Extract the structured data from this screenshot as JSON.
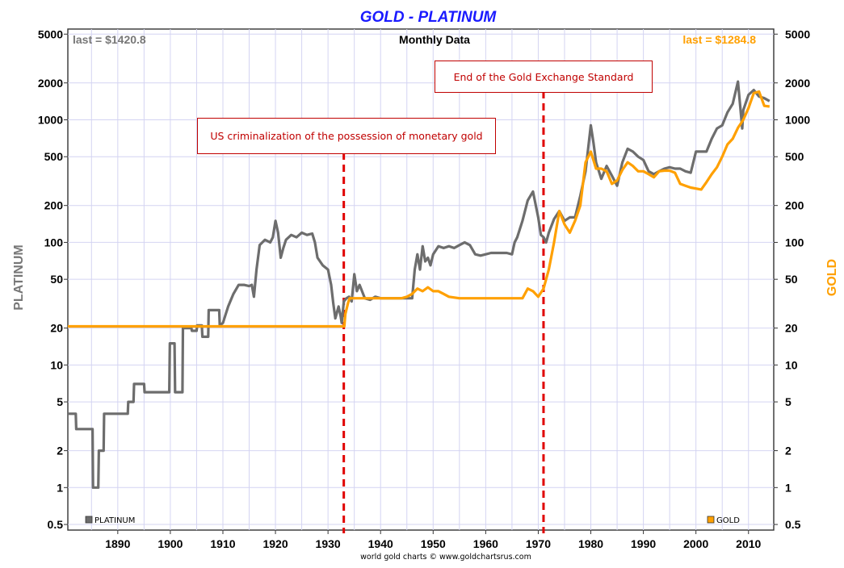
{
  "chart_data": {
    "type": "line",
    "title": "GOLD - PLATINUM",
    "subtitle": "Monthly Data",
    "credit": "world gold charts © www.goldchartsrus.com",
    "y_scale": "log",
    "ylim": [
      0.45,
      5500
    ],
    "xlim": [
      1880.5,
      2014.8
    ],
    "left_axis_label": "PLATINUM",
    "right_axis_label": "GOLD",
    "y_ticks": [
      0.5,
      1,
      2,
      5,
      10,
      20,
      50,
      100,
      200,
      500,
      1000,
      2000,
      5000
    ],
    "x_ticks": [
      1890,
      1900,
      1910,
      1920,
      1930,
      1940,
      1950,
      1960,
      1970,
      1980,
      1990,
      2000,
      2010
    ],
    "grid": true,
    "last_labels": {
      "platinum": "last = $1420.8",
      "gold": "last = $1284.8"
    },
    "legend": [
      {
        "name": "PLATINUM",
        "color": "#6d6d6d",
        "position": "bottom-left"
      },
      {
        "name": "GOLD",
        "color": "#ffa000",
        "position": "bottom-right"
      }
    ],
    "annotations": [
      {
        "text": "US criminalization of the possession of monetary gold",
        "x": 1933
      },
      {
        "text": "End of the Gold Exchange Standard",
        "x": 1971
      }
    ],
    "series": [
      {
        "name": "PLATINUM",
        "color": "#6d6d6d",
        "points": [
          [
            1880.5,
            4
          ],
          [
            1882,
            4
          ],
          [
            1882.1,
            3
          ],
          [
            1885.2,
            3
          ],
          [
            1885.3,
            1
          ],
          [
            1886.3,
            1
          ],
          [
            1886.4,
            2
          ],
          [
            1887.3,
            2
          ],
          [
            1887.4,
            4
          ],
          [
            1891.9,
            4
          ],
          [
            1892,
            5
          ],
          [
            1893,
            5
          ],
          [
            1893.1,
            7
          ],
          [
            1895,
            7
          ],
          [
            1895.1,
            6
          ],
          [
            1899.8,
            6
          ],
          [
            1899.9,
            15
          ],
          [
            1900.8,
            15
          ],
          [
            1900.9,
            6
          ],
          [
            1902.3,
            6
          ],
          [
            1902.4,
            20
          ],
          [
            1904,
            20
          ],
          [
            1904.1,
            19
          ],
          [
            1905,
            19
          ],
          [
            1905.1,
            21
          ],
          [
            1906,
            21
          ],
          [
            1906.1,
            17
          ],
          [
            1907.2,
            17
          ],
          [
            1907.3,
            28
          ],
          [
            1909.3,
            28
          ],
          [
            1909.4,
            21
          ],
          [
            1910,
            22
          ],
          [
            1911,
            30
          ],
          [
            1912,
            38
          ],
          [
            1913,
            45
          ],
          [
            1914,
            45
          ],
          [
            1915,
            44
          ],
          [
            1915.5,
            45
          ],
          [
            1915.9,
            36
          ],
          [
            1916.4,
            60
          ],
          [
            1917,
            95
          ],
          [
            1918,
            105
          ],
          [
            1919,
            100
          ],
          [
            1919.5,
            110
          ],
          [
            1920,
            150
          ],
          [
            1920.5,
            120
          ],
          [
            1921,
            75
          ],
          [
            1921.5,
            90
          ],
          [
            1922,
            105
          ],
          [
            1923,
            115
          ],
          [
            1924,
            110
          ],
          [
            1925,
            120
          ],
          [
            1926,
            115
          ],
          [
            1927,
            118
          ],
          [
            1927.5,
            100
          ],
          [
            1928,
            75
          ],
          [
            1929,
            65
          ],
          [
            1930,
            60
          ],
          [
            1930.6,
            45
          ],
          [
            1931,
            32
          ],
          [
            1931.4,
            24
          ],
          [
            1932,
            30
          ],
          [
            1932.4,
            25
          ],
          [
            1932.6,
            22
          ],
          [
            1933,
            33
          ],
          [
            1933.5,
            35
          ],
          [
            1934,
            36
          ],
          [
            1934.5,
            33
          ],
          [
            1935,
            55
          ],
          [
            1935.5,
            40
          ],
          [
            1936,
            45
          ],
          [
            1937,
            35
          ],
          [
            1938,
            34
          ],
          [
            1939,
            36
          ],
          [
            1940,
            35
          ],
          [
            1941,
            35
          ],
          [
            1942,
            35
          ],
          [
            1944,
            35
          ],
          [
            1945,
            35
          ],
          [
            1946,
            35
          ],
          [
            1946.5,
            60
          ],
          [
            1947,
            80
          ],
          [
            1947.5,
            60
          ],
          [
            1948,
            93
          ],
          [
            1948.5,
            70
          ],
          [
            1949,
            75
          ],
          [
            1949.5,
            65
          ],
          [
            1950,
            80
          ],
          [
            1951,
            93
          ],
          [
            1952,
            90
          ],
          [
            1953,
            93
          ],
          [
            1954,
            90
          ],
          [
            1955,
            95
          ],
          [
            1956,
            100
          ],
          [
            1957,
            95
          ],
          [
            1958,
            80
          ],
          [
            1959,
            78
          ],
          [
            1960,
            80
          ],
          [
            1961,
            82
          ],
          [
            1962,
            82
          ],
          [
            1964,
            82
          ],
          [
            1965,
            80
          ],
          [
            1965.5,
            100
          ],
          [
            1966,
            110
          ],
          [
            1967,
            150
          ],
          [
            1968,
            220
          ],
          [
            1969,
            260
          ],
          [
            1970,
            160
          ],
          [
            1970.5,
            115
          ],
          [
            1971,
            110
          ],
          [
            1971.5,
            100
          ],
          [
            1972,
            120
          ],
          [
            1973,
            155
          ],
          [
            1974,
            180
          ],
          [
            1975,
            150
          ],
          [
            1976,
            160
          ],
          [
            1977,
            160
          ],
          [
            1978,
            240
          ],
          [
            1979,
            380
          ],
          [
            1980,
            900
          ],
          [
            1980.5,
            650
          ],
          [
            1981,
            450
          ],
          [
            1982,
            330
          ],
          [
            1983,
            420
          ],
          [
            1984,
            350
          ],
          [
            1985,
            290
          ],
          [
            1986,
            450
          ],
          [
            1987,
            580
          ],
          [
            1988,
            550
          ],
          [
            1989,
            500
          ],
          [
            1990,
            470
          ],
          [
            1991,
            380
          ],
          [
            1992,
            360
          ],
          [
            1993,
            380
          ],
          [
            1994,
            400
          ],
          [
            1995,
            410
          ],
          [
            1996,
            400
          ],
          [
            1997,
            400
          ],
          [
            1998,
            380
          ],
          [
            1999,
            370
          ],
          [
            2000,
            550
          ],
          [
            2001,
            550
          ],
          [
            2002,
            550
          ],
          [
            2003,
            700
          ],
          [
            2004,
            850
          ],
          [
            2005,
            900
          ],
          [
            2006,
            1150
          ],
          [
            2007,
            1350
          ],
          [
            2008,
            2050
          ],
          [
            2008.8,
            850
          ],
          [
            2009,
            1200
          ],
          [
            2010,
            1600
          ],
          [
            2011,
            1750
          ],
          [
            2012,
            1550
          ],
          [
            2013,
            1500
          ],
          [
            2014,
            1420.8
          ]
        ]
      },
      {
        "name": "GOLD",
        "color": "#ffa000",
        "points": [
          [
            1880.5,
            20.67
          ],
          [
            1933.1,
            20.67
          ],
          [
            1933.3,
            26
          ],
          [
            1933.8,
            32
          ],
          [
            1934.1,
            35
          ],
          [
            1940,
            35
          ],
          [
            1944,
            35
          ],
          [
            1945,
            36
          ],
          [
            1946,
            38
          ],
          [
            1947,
            42
          ],
          [
            1948,
            40
          ],
          [
            1949,
            43
          ],
          [
            1950,
            40
          ],
          [
            1951,
            40
          ],
          [
            1952,
            38
          ],
          [
            1953,
            36
          ],
          [
            1955,
            35
          ],
          [
            1960,
            35
          ],
          [
            1965,
            35
          ],
          [
            1967,
            35
          ],
          [
            1968,
            42
          ],
          [
            1969,
            40
          ],
          [
            1970,
            36
          ],
          [
            1971,
            42
          ],
          [
            1972,
            60
          ],
          [
            1973,
            100
          ],
          [
            1974,
            180
          ],
          [
            1975,
            140
          ],
          [
            1976,
            120
          ],
          [
            1977,
            150
          ],
          [
            1978,
            200
          ],
          [
            1979,
            450
          ],
          [
            1980,
            550
          ],
          [
            1981,
            400
          ],
          [
            1982,
            400
          ],
          [
            1983,
            380
          ],
          [
            1984,
            300
          ],
          [
            1985,
            320
          ],
          [
            1986,
            390
          ],
          [
            1987,
            450
          ],
          [
            1988,
            420
          ],
          [
            1989,
            380
          ],
          [
            1990,
            380
          ],
          [
            1991,
            360
          ],
          [
            1992,
            340
          ],
          [
            1993,
            380
          ],
          [
            1994,
            385
          ],
          [
            1995,
            385
          ],
          [
            1996,
            370
          ],
          [
            1997,
            300
          ],
          [
            1998,
            290
          ],
          [
            1999,
            280
          ],
          [
            2000,
            275
          ],
          [
            2001,
            270
          ],
          [
            2002,
            310
          ],
          [
            2003,
            360
          ],
          [
            2004,
            410
          ],
          [
            2005,
            500
          ],
          [
            2006,
            630
          ],
          [
            2007,
            700
          ],
          [
            2008,
            860
          ],
          [
            2009,
            1000
          ],
          [
            2010,
            1250
          ],
          [
            2011,
            1650
          ],
          [
            2012,
            1700
          ],
          [
            2013,
            1300
          ],
          [
            2014,
            1284.8
          ]
        ]
      }
    ]
  }
}
